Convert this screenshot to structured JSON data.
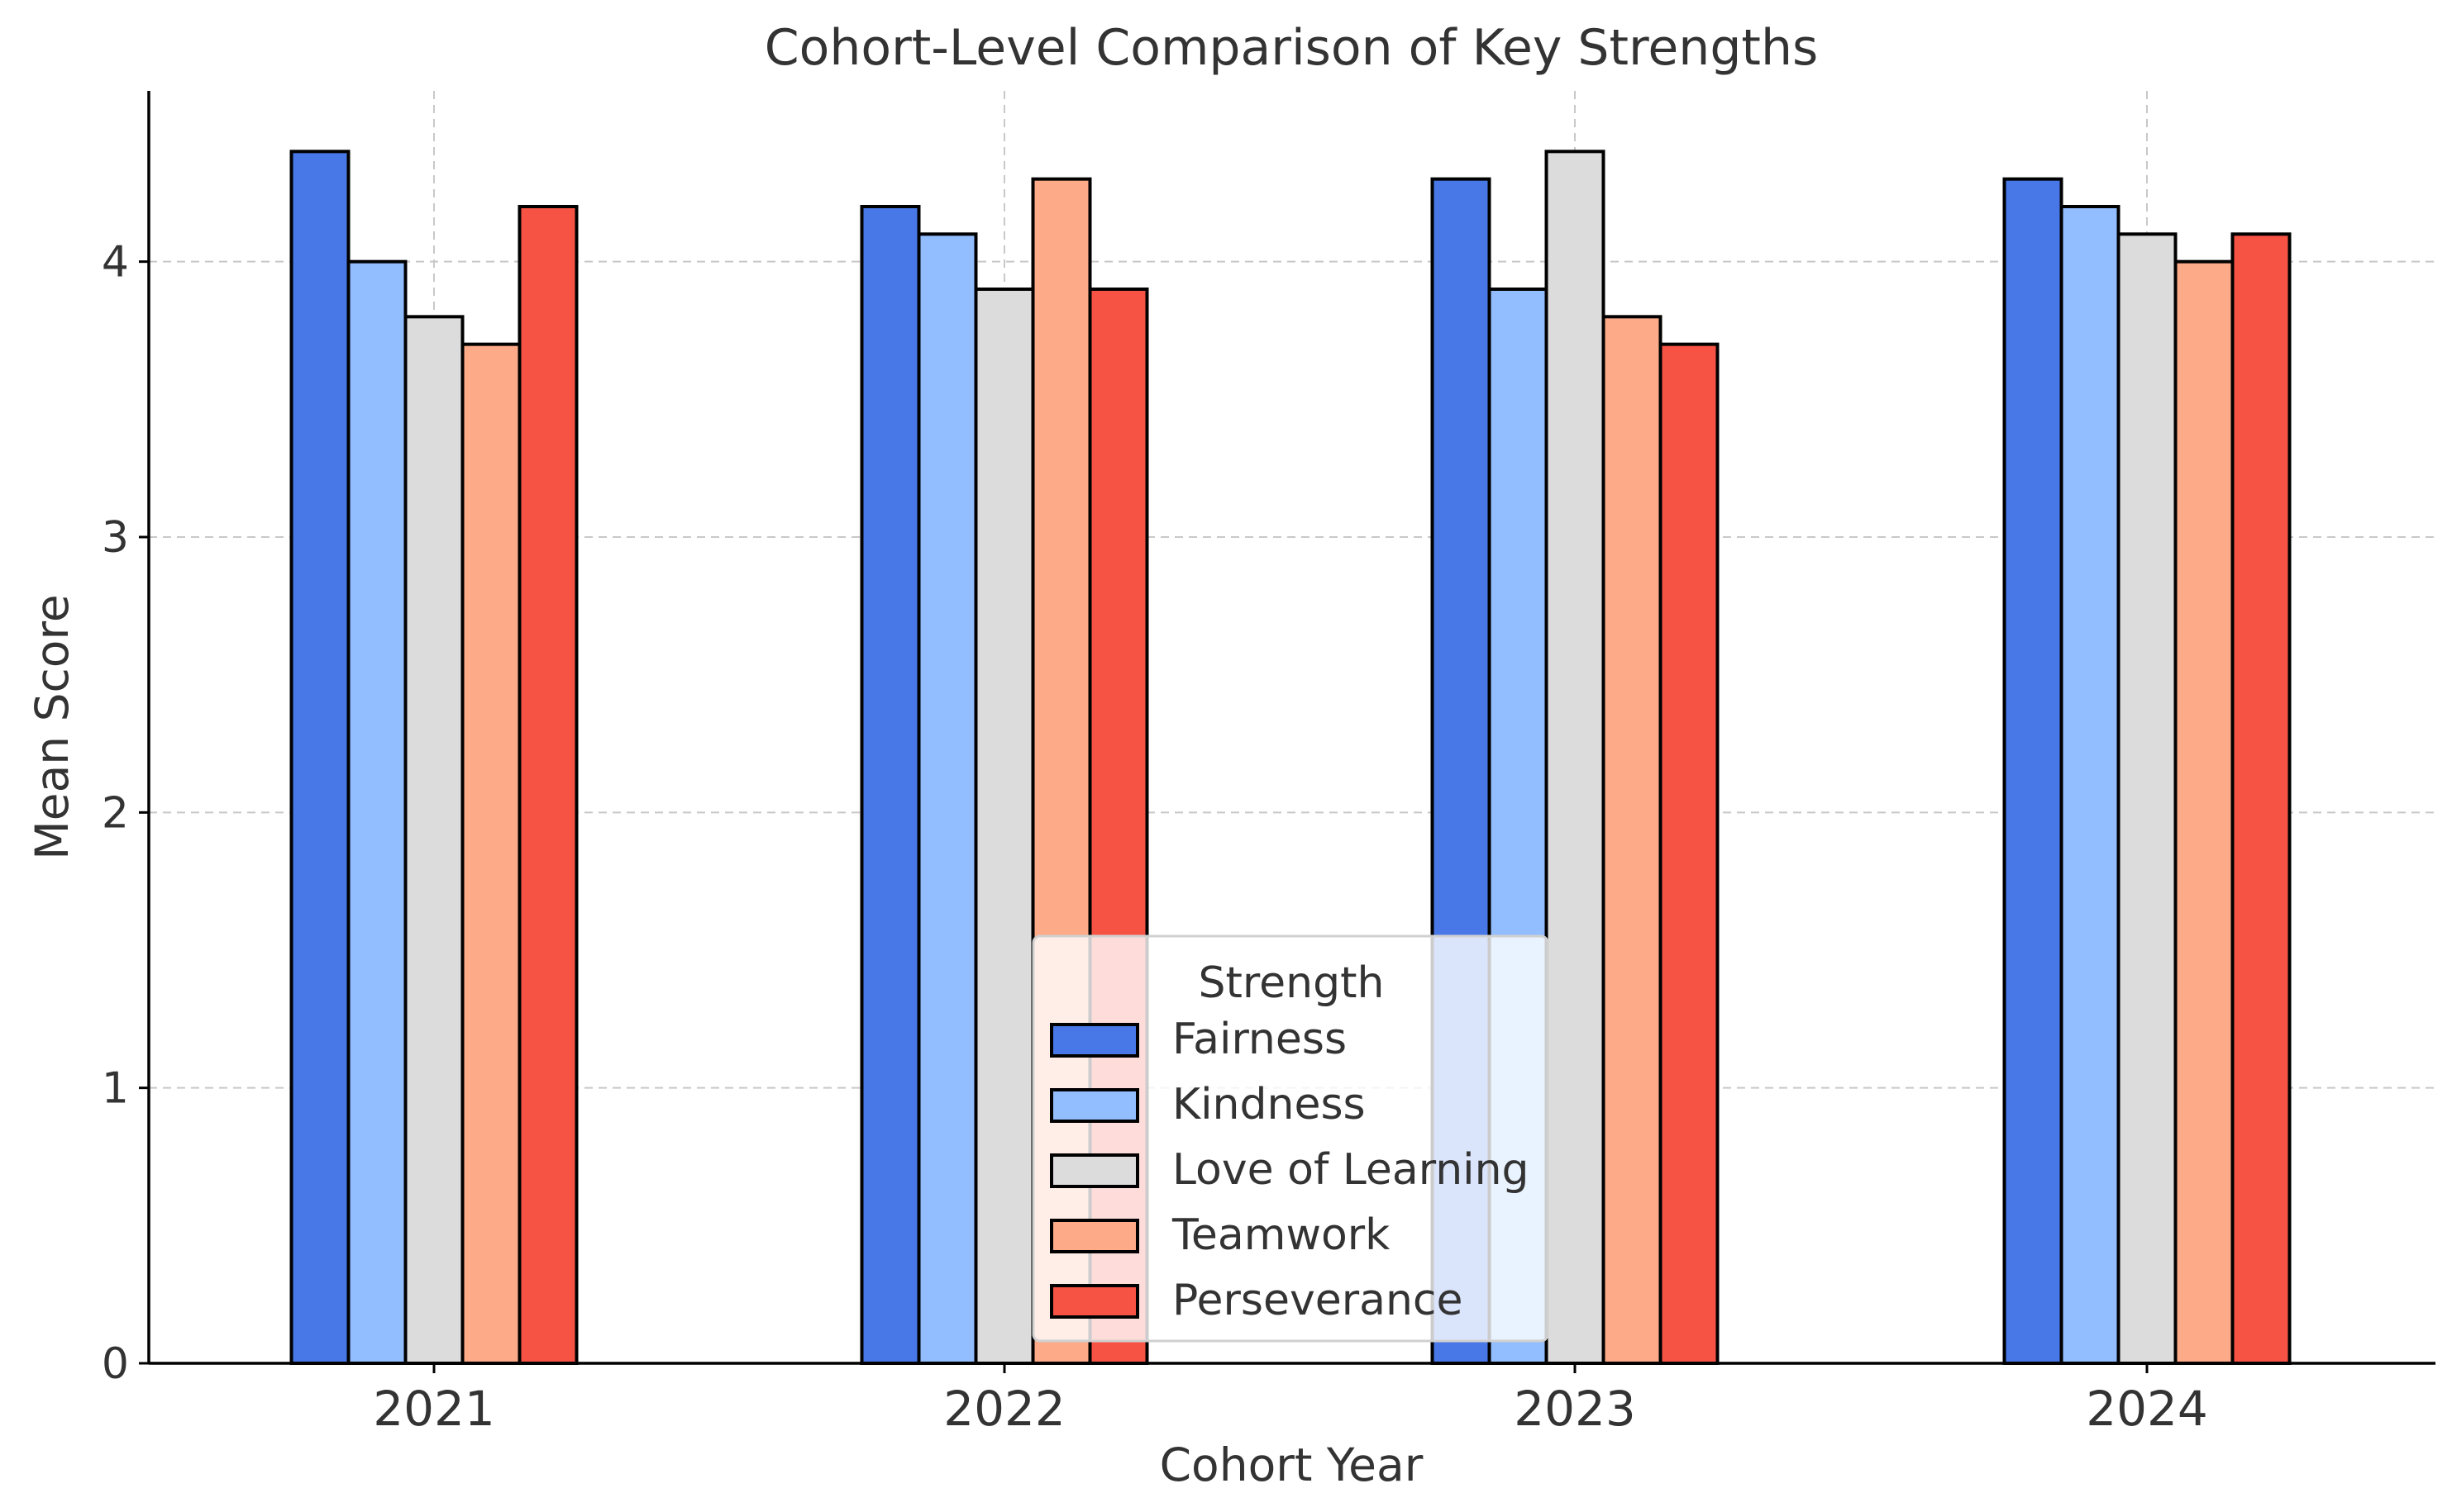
{
  "chart_data": {
    "type": "bar",
    "title": "Cohort-Level Comparison of Key Strengths",
    "xlabel": "Cohort Year",
    "ylabel": "Mean Score",
    "categories": [
      "2021",
      "2022",
      "2023",
      "2024"
    ],
    "ylim": [
      0,
      4.62
    ],
    "yticks": [
      0,
      1,
      2,
      3,
      4
    ],
    "grid": true,
    "legend": {
      "title": "Strength",
      "placement": "lower-center"
    },
    "series": [
      {
        "name": "Fairness",
        "color": "#4878e8",
        "values": [
          4.4,
          4.2,
          4.3,
          4.3
        ]
      },
      {
        "name": "Kindness",
        "color": "#92bdff",
        "values": [
          4.0,
          4.1,
          3.9,
          4.2
        ]
      },
      {
        "name": "Love of Learning",
        "color": "#dcdcdc",
        "values": [
          3.8,
          3.9,
          4.4,
          4.1
        ]
      },
      {
        "name": "Teamwork",
        "color": "#fdaa88",
        "values": [
          3.7,
          4.3,
          3.8,
          4.0
        ]
      },
      {
        "name": "Perseverance",
        "color": "#f75345",
        "values": [
          4.2,
          3.9,
          3.7,
          4.1
        ]
      }
    ]
  }
}
